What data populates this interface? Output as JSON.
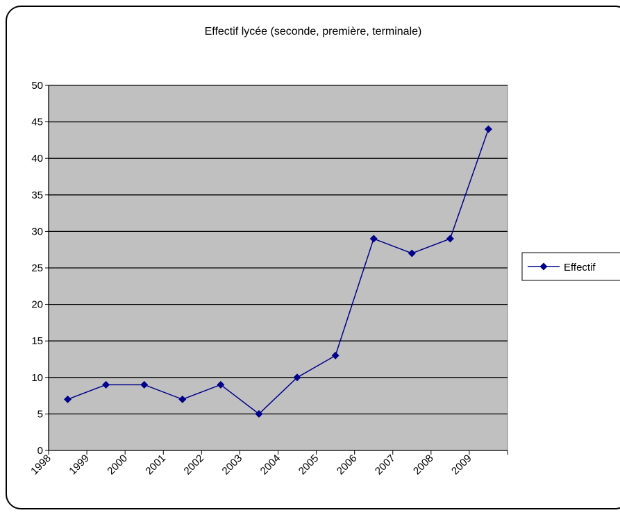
{
  "chart_data": {
    "type": "line",
    "title": "Effectif lycée (seconde, première, terminale)",
    "categories": [
      "1998",
      "1999",
      "2000",
      "2001",
      "2002",
      "2003",
      "2004",
      "2005",
      "2006",
      "2007",
      "2008",
      "2009"
    ],
    "series": [
      {
        "name": "Effectif",
        "values": [
          7,
          9,
          9,
          7,
          9,
          5,
          10,
          13,
          29,
          27,
          29,
          44
        ],
        "color": "#00008B"
      }
    ],
    "ylim": [
      0,
      50
    ],
    "yticks": [
      "0",
      "5",
      "10",
      "15",
      "20",
      "25",
      "30",
      "35",
      "40",
      "45",
      "50"
    ],
    "grid": true,
    "plot_background": "#C0C0C0",
    "legend_position": "right"
  }
}
